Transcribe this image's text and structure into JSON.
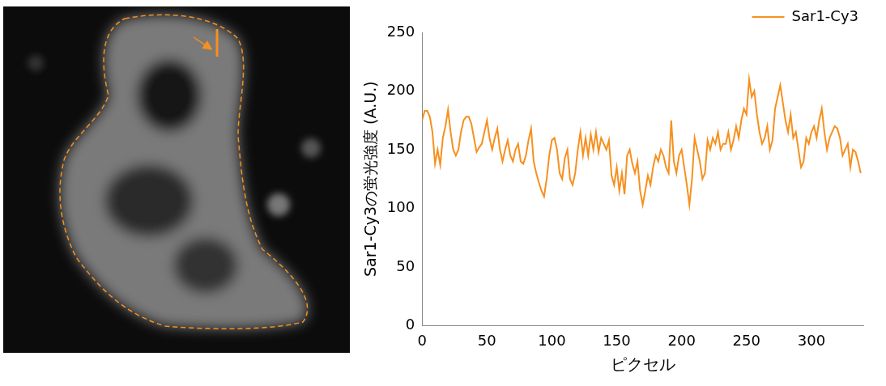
{
  "chart_data": {
    "type": "line",
    "x_label": "ピクセル",
    "y_label": "Sar1-Cy3の蛍光強度 (A.U.)",
    "xlim": [
      0,
      340
    ],
    "xticks": [
      0,
      50,
      100,
      150,
      200,
      250,
      300
    ],
    "ylim": [
      0,
      250
    ],
    "yticks": [
      0,
      50,
      100,
      150,
      200,
      250
    ],
    "grid": false,
    "legend": "upper right",
    "x": [
      0,
      2,
      4,
      6,
      8,
      10,
      12,
      14,
      16,
      18,
      20,
      22,
      24,
      26,
      28,
      30,
      32,
      34,
      36,
      38,
      40,
      42,
      44,
      46,
      48,
      50,
      52,
      54,
      56,
      58,
      60,
      62,
      64,
      66,
      68,
      70,
      72,
      74,
      76,
      78,
      80,
      82,
      84,
      86,
      88,
      90,
      92,
      94,
      96,
      98,
      100,
      102,
      104,
      106,
      108,
      110,
      112,
      114,
      116,
      118,
      120,
      122,
      124,
      126,
      128,
      130,
      132,
      134,
      136,
      138,
      140,
      142,
      144,
      146,
      148,
      150,
      152,
      154,
      156,
      158,
      160,
      162,
      164,
      166,
      168,
      170,
      172,
      174,
      176,
      178,
      180,
      182,
      184,
      186,
      188,
      190,
      192,
      194,
      196,
      198,
      200,
      202,
      204,
      206,
      208,
      210,
      212,
      214,
      216,
      218,
      220,
      222,
      224,
      226,
      228,
      230,
      232,
      234,
      236,
      238,
      240,
      242,
      244,
      246,
      248,
      250,
      252,
      254,
      256,
      258,
      260,
      262,
      264,
      266,
      268,
      270,
      272,
      274,
      276,
      278,
      280,
      282,
      284,
      286,
      288,
      290,
      292,
      294,
      296,
      298,
      300,
      302,
      304,
      306,
      308,
      310,
      312,
      314,
      316,
      318,
      320,
      322,
      324,
      326,
      328,
      330,
      332,
      334,
      336,
      338
    ],
    "series": [
      {
        "name": "Sar1-Cy3",
        "color": "#f7901e",
        "marker": "none",
        "line_style": "solid",
        "values": [
          175,
          183,
          183,
          178,
          165,
          138,
          150,
          137,
          160,
          170,
          184,
          165,
          150,
          145,
          150,
          165,
          175,
          178,
          178,
          172,
          160,
          148,
          152,
          155,
          165,
          175,
          160,
          150,
          160,
          168,
          150,
          140,
          150,
          158,
          145,
          140,
          150,
          155,
          140,
          138,
          145,
          158,
          168,
          140,
          130,
          122,
          115,
          110,
          125,
          145,
          158,
          160,
          150,
          130,
          125,
          143,
          150,
          125,
          120,
          130,
          150,
          165,
          145,
          160,
          145,
          163,
          150,
          165,
          148,
          160,
          155,
          150,
          158,
          128,
          120,
          135,
          115,
          130,
          112,
          145,
          150,
          138,
          130,
          140,
          115,
          103,
          115,
          128,
          120,
          135,
          145,
          140,
          150,
          145,
          135,
          130,
          175,
          140,
          130,
          145,
          150,
          135,
          120,
          103,
          125,
          160,
          150,
          140,
          125,
          130,
          158,
          150,
          160,
          155,
          165,
          150,
          155,
          155,
          165,
          150,
          158,
          170,
          160,
          175,
          185,
          180,
          210,
          195,
          200,
          180,
          165,
          155,
          160,
          170,
          150,
          158,
          185,
          195,
          205,
          190,
          175,
          165,
          180,
          160,
          165,
          150,
          135,
          140,
          160,
          155,
          165,
          170,
          160,
          175,
          185,
          165,
          150,
          160,
          165,
          170,
          168,
          160,
          145,
          150,
          155,
          135,
          150,
          148,
          140,
          130
        ]
      }
    ]
  }
}
